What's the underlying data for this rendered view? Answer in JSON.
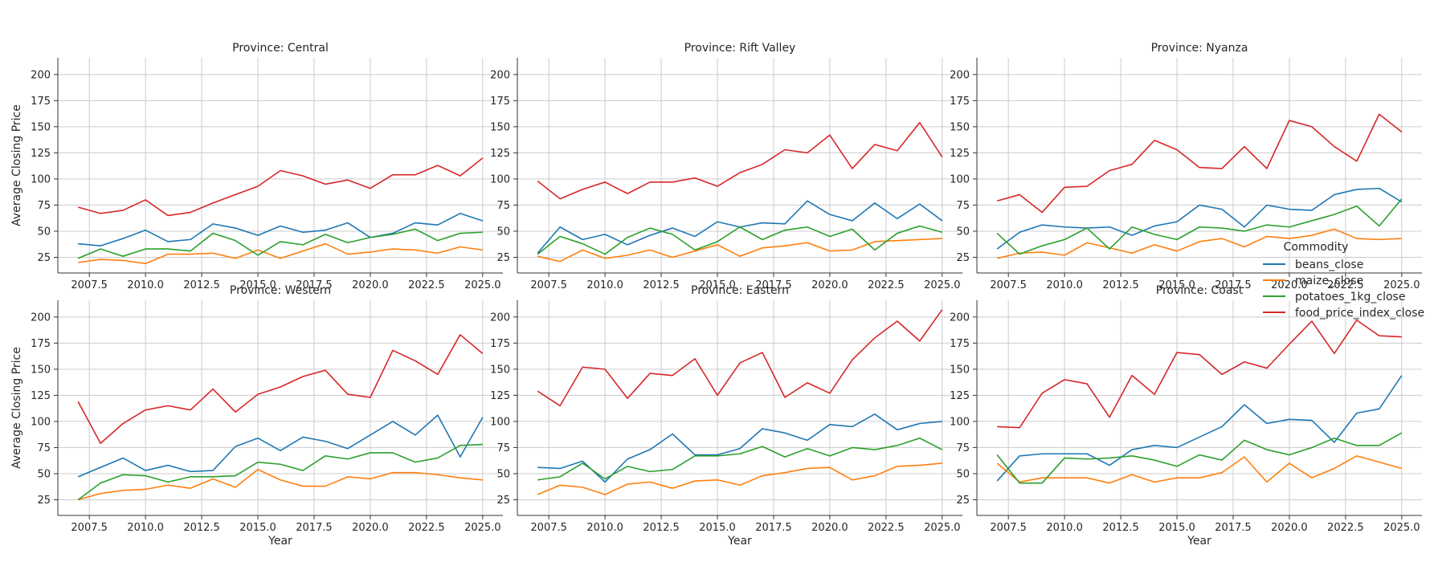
{
  "chart_data": {
    "type": "line",
    "ylabel": "Average Closing Price",
    "xlabel": "Year",
    "xlim": [
      2006.1,
      2025.9
    ],
    "ylim": [
      10,
      216
    ],
    "xticks": [
      2007.5,
      2010,
      2012.5,
      2015,
      2017.5,
      2020,
      2022.5,
      2025
    ],
    "xtick_labels": [
      "2007.5",
      "2010.0",
      "2012.5",
      "2015.0",
      "2017.5",
      "2020.0",
      "2022.5",
      "2025.0"
    ],
    "yticks": [
      25,
      50,
      75,
      100,
      125,
      150,
      175,
      200
    ],
    "grid": true,
    "legend": {
      "title": "Commodity",
      "placement": "right",
      "entries": [
        "beans_close",
        "maize_close",
        "potatoes_1kg_close",
        "food_price_index_close"
      ]
    },
    "colors": {
      "beans_close": "#1f77b4",
      "maize_close": "#ff7f0e",
      "potatoes_1kg_close": "#2ca02c",
      "food_price_index_close": "#d62728"
    },
    "x": [
      2007,
      2008,
      2009,
      2010,
      2011,
      2012,
      2013,
      2014,
      2015,
      2016,
      2017,
      2018,
      2019,
      2020,
      2021,
      2022,
      2023,
      2024,
      2025
    ],
    "panels": [
      {
        "title": "Province: Central",
        "series": [
          {
            "name": "beans_close",
            "values": [
              38,
              36,
              43,
              51,
              40,
              42,
              57,
              53,
              46,
              55,
              49,
              51,
              58,
              44,
              48,
              58,
              56,
              67,
              60
            ]
          },
          {
            "name": "maize_close",
            "values": [
              20,
              23,
              22,
              19,
              28,
              28,
              29,
              24,
              32,
              24,
              31,
              38,
              28,
              30,
              33,
              32,
              29,
              35,
              32
            ]
          },
          {
            "name": "potatoes_1kg_close",
            "values": [
              24,
              33,
              26,
              33,
              33,
              31,
              48,
              41,
              27,
              40,
              37,
              47,
              39,
              44,
              47,
              52,
              41,
              48,
              49
            ]
          },
          {
            "name": "food_price_index_close",
            "values": [
              73,
              67,
              70,
              80,
              65,
              68,
              77,
              85,
              93,
              108,
              103,
              95,
              99,
              91,
              104,
              104,
              113,
              103,
              120
            ]
          }
        ]
      },
      {
        "title": "Province: Rift Valley",
        "series": [
          {
            "name": "beans_close",
            "values": [
              29,
              54,
              42,
              47,
              37,
              46,
              53,
              45,
              59,
              54,
              58,
              57,
              79,
              66,
              60,
              77,
              62,
              76,
              60
            ]
          },
          {
            "name": "maize_close",
            "values": [
              26,
              21,
              32,
              24,
              27,
              32,
              25,
              31,
              37,
              26,
              34,
              36,
              39,
              31,
              32,
              40,
              41,
              42,
              43
            ]
          },
          {
            "name": "potatoes_1kg_close",
            "values": [
              28,
              45,
              38,
              28,
              44,
              53,
              47,
              32,
              40,
              54,
              42,
              51,
              54,
              45,
              52,
              32,
              48,
              55,
              49
            ]
          },
          {
            "name": "food_price_index_close",
            "values": [
              98,
              81,
              90,
              97,
              86,
              97,
              97,
              101,
              93,
              106,
              114,
              128,
              125,
              142,
              110,
              133,
              127,
              154,
              121
            ]
          }
        ]
      },
      {
        "title": "Province: Nyanza",
        "series": [
          {
            "name": "beans_close",
            "values": [
              33,
              49,
              56,
              54,
              53,
              54,
              46,
              55,
              59,
              75,
              71,
              54,
              75,
              71,
              70,
              85,
              90,
              91,
              78
            ]
          },
          {
            "name": "maize_close",
            "values": [
              24,
              29,
              30,
              27,
              39,
              34,
              29,
              37,
              31,
              40,
              43,
              35,
              45,
              43,
              46,
              52,
              43,
              42,
              43
            ]
          },
          {
            "name": "potatoes_1kg_close",
            "values": [
              48,
              28,
              36,
              42,
              53,
              33,
              54,
              47,
              42,
              54,
              53,
              50,
              56,
              54,
              60,
              66,
              74,
              55,
              81
            ]
          },
          {
            "name": "food_price_index_close",
            "values": [
              79,
              85,
              68,
              92,
              93,
              108,
              114,
              137,
              128,
              111,
              110,
              131,
              110,
              156,
              150,
              131,
              117,
              162,
              145
            ]
          }
        ]
      },
      {
        "title": "Province: Western",
        "series": [
          {
            "name": "beans_close",
            "values": [
              47,
              56,
              65,
              53,
              58,
              52,
              53,
              76,
              84,
              72,
              85,
              81,
              74,
              87,
              100,
              87,
              106,
              66,
              104
            ]
          },
          {
            "name": "maize_close",
            "values": [
              25,
              31,
              34,
              35,
              39,
              36,
              45,
              37,
              54,
              44,
              38,
              38,
              47,
              45,
              51,
              51,
              49,
              46,
              44
            ]
          },
          {
            "name": "potatoes_1kg_close",
            "values": [
              25,
              41,
              49,
              48,
              42,
              47,
              47,
              48,
              61,
              59,
              53,
              67,
              64,
              70,
              70,
              61,
              65,
              77,
              78
            ]
          },
          {
            "name": "food_price_index_close",
            "values": [
              119,
              79,
              98,
              111,
              115,
              111,
              131,
              109,
              126,
              133,
              143,
              149,
              126,
              123,
              168,
              158,
              145,
              183,
              165
            ]
          }
        ]
      },
      {
        "title": "Province: Eastern",
        "series": [
          {
            "name": "beans_close",
            "values": [
              56,
              55,
              62,
              42,
              64,
              73,
              88,
              68,
              68,
              74,
              93,
              89,
              82,
              97,
              95,
              107,
              92,
              98,
              100
            ]
          },
          {
            "name": "maize_close",
            "values": [
              30,
              39,
              37,
              30,
              40,
              42,
              36,
              43,
              44,
              39,
              48,
              51,
              55,
              56,
              44,
              48,
              57,
              58,
              60
            ]
          },
          {
            "name": "potatoes_1kg_close",
            "values": [
              44,
              47,
              60,
              45,
              57,
              52,
              54,
              67,
              67,
              69,
              76,
              66,
              74,
              67,
              75,
              73,
              77,
              84,
              73
            ]
          },
          {
            "name": "food_price_index_close",
            "values": [
              129,
              115,
              152,
              150,
              122,
              146,
              144,
              160,
              125,
              156,
              166,
              123,
              137,
              127,
              159,
              180,
              196,
              177,
              207
            ]
          }
        ]
      },
      {
        "title": "Province: Coast",
        "series": [
          {
            "name": "beans_close",
            "values": [
              43,
              67,
              69,
              69,
              69,
              58,
              73,
              77,
              75,
              85,
              95,
              116,
              98,
              102,
              101,
              80,
              108,
              112,
              144
            ]
          },
          {
            "name": "maize_close",
            "values": [
              60,
              42,
              46,
              46,
              46,
              41,
              49,
              42,
              46,
              46,
              51,
              66,
              42,
              60,
              46,
              55,
              67,
              61,
              55
            ]
          },
          {
            "name": "potatoes_1kg_close",
            "values": [
              68,
              41,
              41,
              65,
              64,
              65,
              67,
              63,
              57,
              68,
              63,
              82,
              73,
              68,
              75,
              84,
              77,
              77,
              89
            ]
          },
          {
            "name": "food_price_index_close",
            "values": [
              95,
              94,
              127,
              140,
              136,
              104,
              144,
              126,
              166,
              164,
              145,
              157,
              151,
              174,
              196,
              165,
              197,
              182,
              181
            ]
          }
        ]
      }
    ]
  }
}
